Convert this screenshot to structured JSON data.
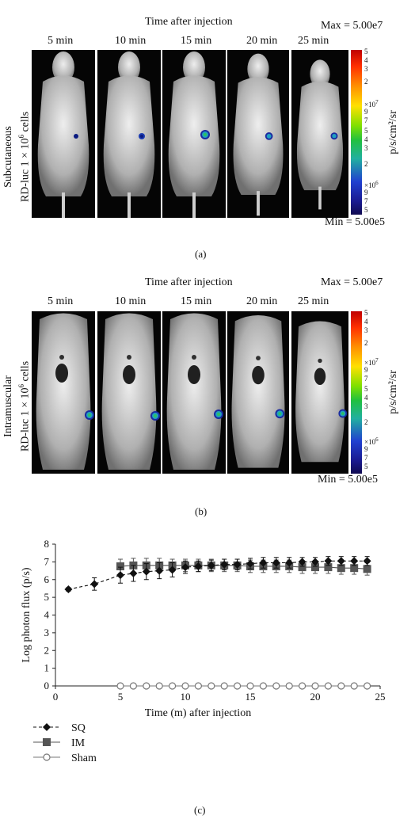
{
  "panel_a": {
    "header": "Time after injection",
    "max_label": "Max = 5.00e7",
    "min_label": "Min = 5.00e5",
    "time_labels": [
      "5 min",
      "10 min",
      "15 min",
      "20 min",
      "25 min"
    ],
    "side_label_line1": "Subcutaneous",
    "side_label_line2_pre": "RD-luc 1 × 10",
    "side_label_exp": "6",
    "side_label_post": " cells",
    "colorbar_units": "p/s/cm²/sr",
    "colorbar_ticks_top": [
      "5",
      "4",
      "3",
      "2"
    ],
    "colorbar_mult_1": "×10",
    "colorbar_mult_1_exp": "7",
    "colorbar_ticks_mid": [
      "9",
      "7",
      "5",
      "4",
      "3",
      "2"
    ],
    "colorbar_mult_2": "×10",
    "colorbar_mult_2_exp": "6",
    "colorbar_ticks_bottom": [
      "9",
      "7",
      "5"
    ],
    "caption": "(a)"
  },
  "panel_b": {
    "header": "Time after injection",
    "max_label": "Max = 5.00e7",
    "min_label": "Min = 5.00e5",
    "time_labels": [
      "5 min",
      "10 min",
      "15 min",
      "20 min",
      "25 min"
    ],
    "side_label_line1": "Intramuscular",
    "side_label_line2_pre": "RD-luc 1 × 10",
    "side_label_exp": "6",
    "side_label_post": " cells",
    "colorbar_units": "p/s/cm²/sr",
    "colorbar_ticks_top": [
      "5",
      "4",
      "3",
      "2"
    ],
    "colorbar_mult_1": "×10",
    "colorbar_mult_1_exp": "7",
    "colorbar_ticks_mid": [
      "9",
      "7",
      "5",
      "4",
      "3",
      "2"
    ],
    "colorbar_mult_2": "×10",
    "colorbar_mult_2_exp": "6",
    "colorbar_ticks_bottom": [
      "9",
      "7",
      "5"
    ],
    "caption": "(b)"
  },
  "panel_c": {
    "caption": "(c)"
  },
  "chart_data": {
    "type": "line",
    "xlabel": "Time (m) after injection",
    "ylabel": "Log photon flux (p/s)",
    "xlim": [
      0,
      25
    ],
    "ylim": [
      0,
      8
    ],
    "x_ticks": [
      0,
      5,
      10,
      15,
      20,
      25
    ],
    "y_ticks": [
      0,
      1,
      2,
      3,
      4,
      5,
      6,
      7,
      8
    ],
    "legend_position": "bottom-left",
    "series": [
      {
        "name": "SQ",
        "marker": "diamond",
        "line": "dashed",
        "color": "#111111",
        "x": [
          1,
          3,
          5,
          6,
          7,
          8,
          9,
          10,
          11,
          12,
          13,
          14,
          15,
          16,
          17,
          18,
          19,
          20,
          21,
          22,
          23,
          24
        ],
        "y": [
          5.45,
          5.75,
          6.25,
          6.35,
          6.45,
          6.5,
          6.55,
          6.7,
          6.75,
          6.8,
          6.85,
          6.85,
          6.9,
          6.95,
          6.95,
          6.95,
          7.0,
          7.0,
          7.05,
          7.05,
          7.05,
          7.05
        ],
        "err": [
          0.1,
          0.35,
          0.45,
          0.45,
          0.45,
          0.45,
          0.4,
          0.35,
          0.3,
          0.3,
          0.3,
          0.3,
          0.3,
          0.3,
          0.3,
          0.3,
          0.25,
          0.25,
          0.25,
          0.25,
          0.25,
          0.25
        ]
      },
      {
        "name": "IM",
        "marker": "square",
        "line": "solid",
        "color": "#555555",
        "x": [
          5,
          6,
          7,
          8,
          9,
          10,
          11,
          12,
          13,
          14,
          15,
          16,
          17,
          18,
          19,
          20,
          21,
          22,
          23,
          24
        ],
        "y": [
          6.75,
          6.8,
          6.8,
          6.8,
          6.8,
          6.8,
          6.8,
          6.8,
          6.8,
          6.8,
          6.75,
          6.75,
          6.75,
          6.75,
          6.7,
          6.7,
          6.7,
          6.65,
          6.65,
          6.6
        ],
        "err": [
          0.4,
          0.4,
          0.4,
          0.4,
          0.35,
          0.35,
          0.35,
          0.35,
          0.35,
          0.35,
          0.35,
          0.35,
          0.35,
          0.35,
          0.35,
          0.35,
          0.35,
          0.35,
          0.35,
          0.35
        ]
      },
      {
        "name": "Sham",
        "marker": "circle-open",
        "line": "solid",
        "color": "#777777",
        "x": [
          5,
          6,
          7,
          8,
          9,
          10,
          11,
          12,
          13,
          14,
          15,
          16,
          17,
          18,
          19,
          20,
          21,
          22,
          23,
          24
        ],
        "y": [
          0,
          0,
          0,
          0,
          0,
          0,
          0,
          0,
          0,
          0,
          0,
          0,
          0,
          0,
          0,
          0,
          0,
          0,
          0,
          0
        ],
        "err": []
      }
    ]
  }
}
